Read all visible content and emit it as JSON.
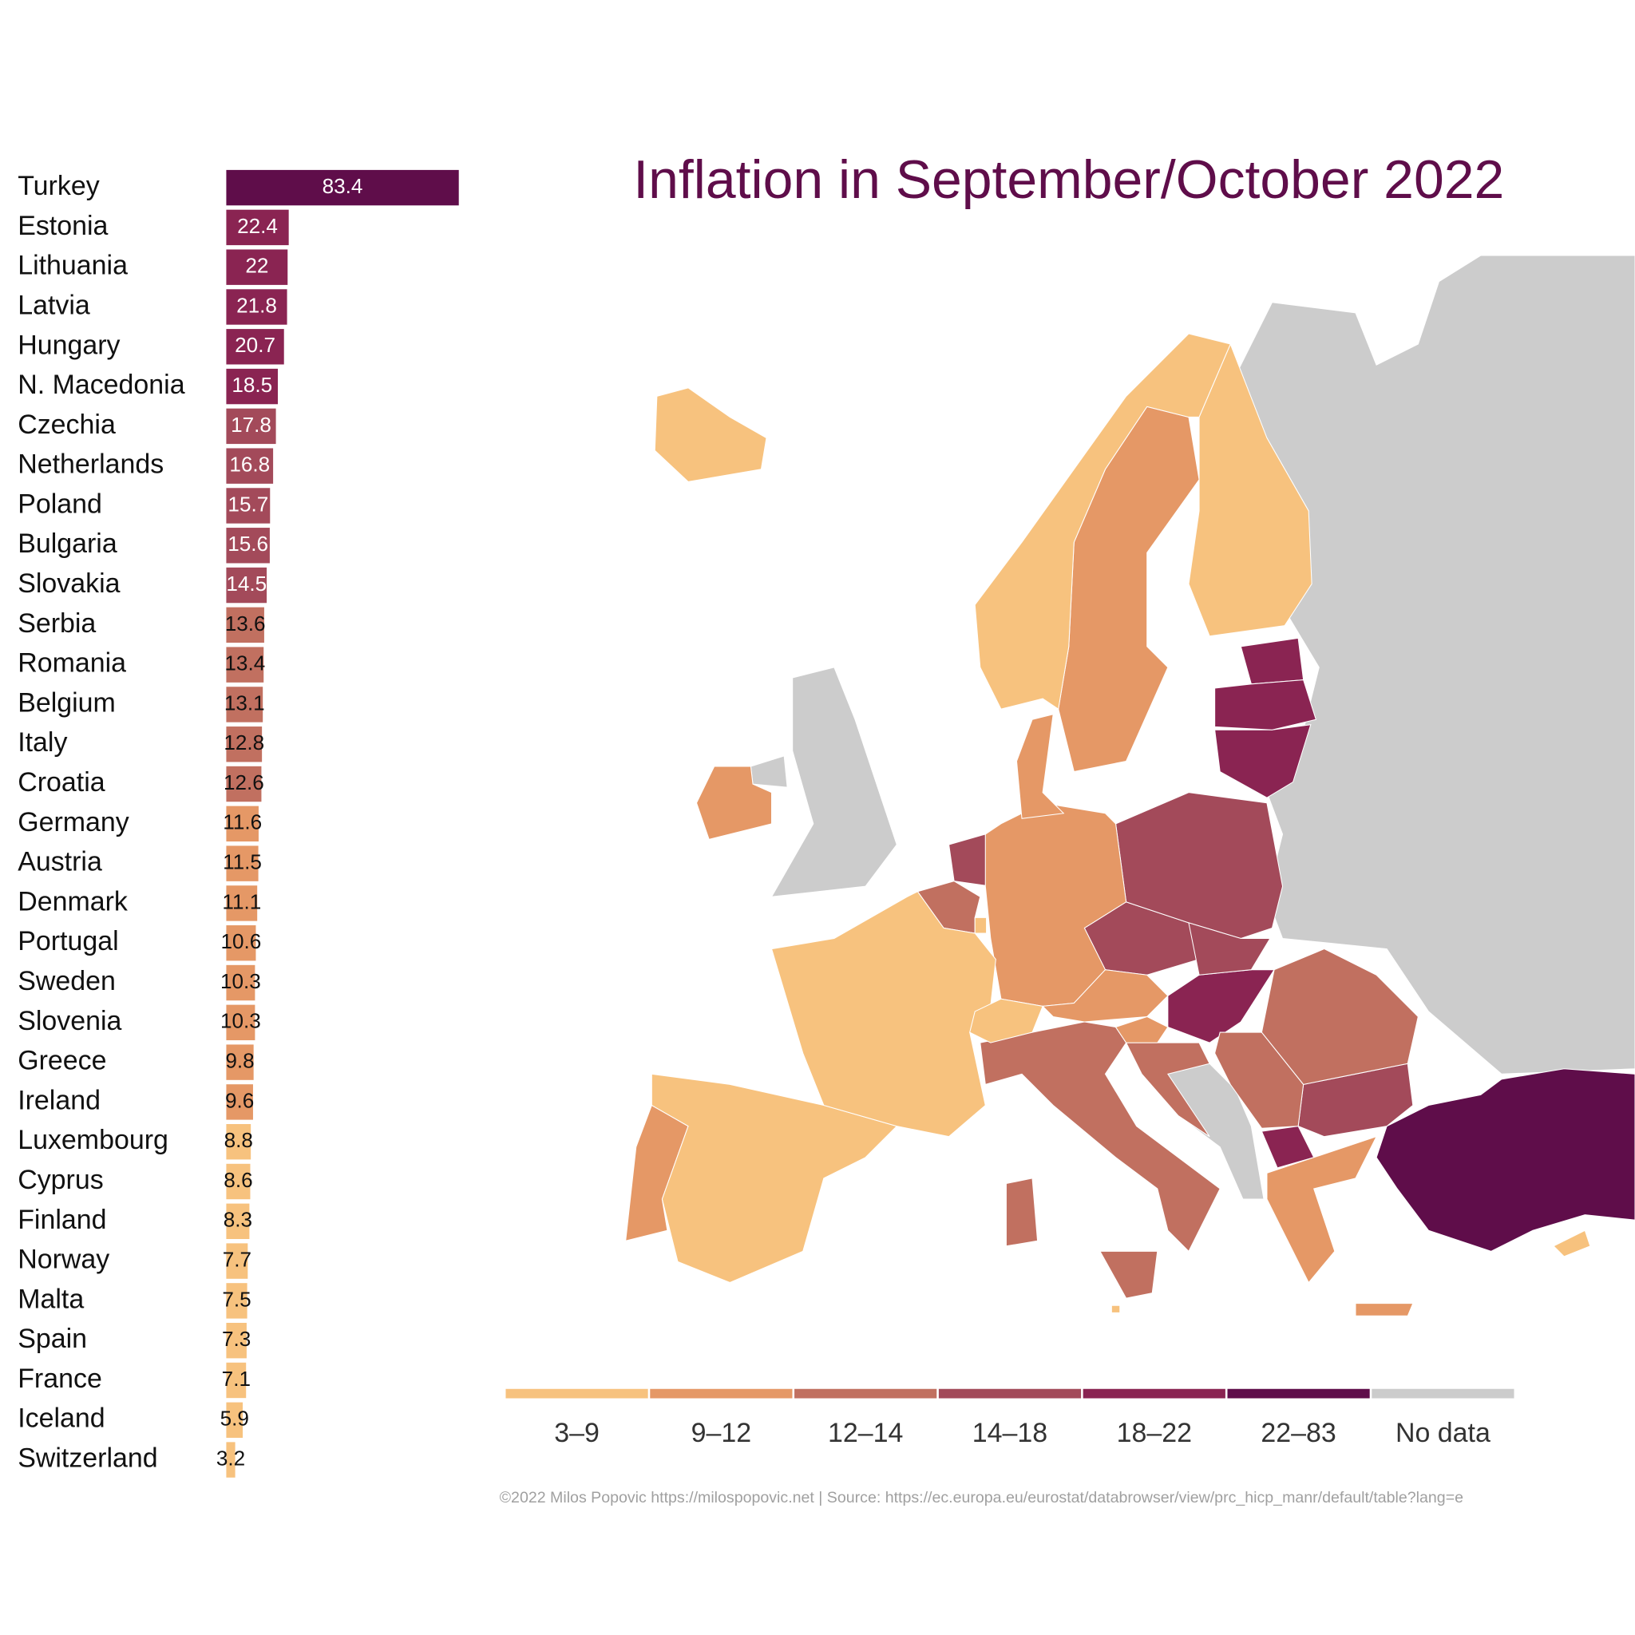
{
  "chart_data": {
    "type": "bar",
    "orientation": "horizontal",
    "title": "Inflation in September/October 2022",
    "categories": [
      "Turkey",
      "Estonia",
      "Lithuania",
      "Latvia",
      "Hungary",
      "N. Macedonia",
      "Czechia",
      "Netherlands",
      "Poland",
      "Bulgaria",
      "Slovakia",
      "Serbia",
      "Romania",
      "Belgium",
      "Italy",
      "Croatia",
      "Germany",
      "Austria",
      "Denmark",
      "Portugal",
      "Sweden",
      "Slovenia",
      "Greece",
      "Ireland",
      "Luxembourg",
      "Cyprus",
      "Finland",
      "Norway",
      "Malta",
      "Spain",
      "France",
      "Iceland",
      "Switzerland"
    ],
    "values": [
      83.4,
      22.4,
      22,
      21.8,
      20.7,
      18.5,
      17.8,
      16.8,
      15.7,
      15.6,
      14.5,
      13.6,
      13.4,
      13.1,
      12.8,
      12.6,
      11.6,
      11.5,
      11.1,
      10.6,
      10.3,
      10.3,
      9.8,
      9.6,
      8.8,
      8.6,
      8.3,
      7.7,
      7.5,
      7.3,
      7.1,
      5.9,
      3.2
    ],
    "colors": [
      "#5f0d4a",
      "#8a2452",
      "#8a2452",
      "#8a2452",
      "#8a2452",
      "#8a2452",
      "#a34a5a",
      "#a34a5a",
      "#a34a5a",
      "#a34a5a",
      "#a34a5a",
      "#c17060",
      "#c17060",
      "#c17060",
      "#c17060",
      "#c17060",
      "#e59866",
      "#e59866",
      "#e59866",
      "#e59866",
      "#e59866",
      "#e59866",
      "#e59866",
      "#e59866",
      "#f7c27e",
      "#f7c27e",
      "#f7c27e",
      "#f7c27e",
      "#f7c27e",
      "#f7c27e",
      "#f7c27e",
      "#f7c27e",
      "#f7c27e"
    ],
    "legend": [
      {
        "label": "3–9",
        "color": "#f7c27e"
      },
      {
        "label": "9–12",
        "color": "#e59866"
      },
      {
        "label": "12–14",
        "color": "#c17060"
      },
      {
        "label": "14–18",
        "color": "#a34a5a"
      },
      {
        "label": "18–22",
        "color": "#8a2452"
      },
      {
        "label": "22–83",
        "color": "#5f0d4a"
      },
      {
        "label": "No data",
        "color": "#cccccc"
      }
    ],
    "source": "©2022 Milos Popovic https://milospopovic.net | Source: https://ec.europa.eu/eurostat/databrowser/view/prc_hicp_manr/default/table?lang=e"
  }
}
